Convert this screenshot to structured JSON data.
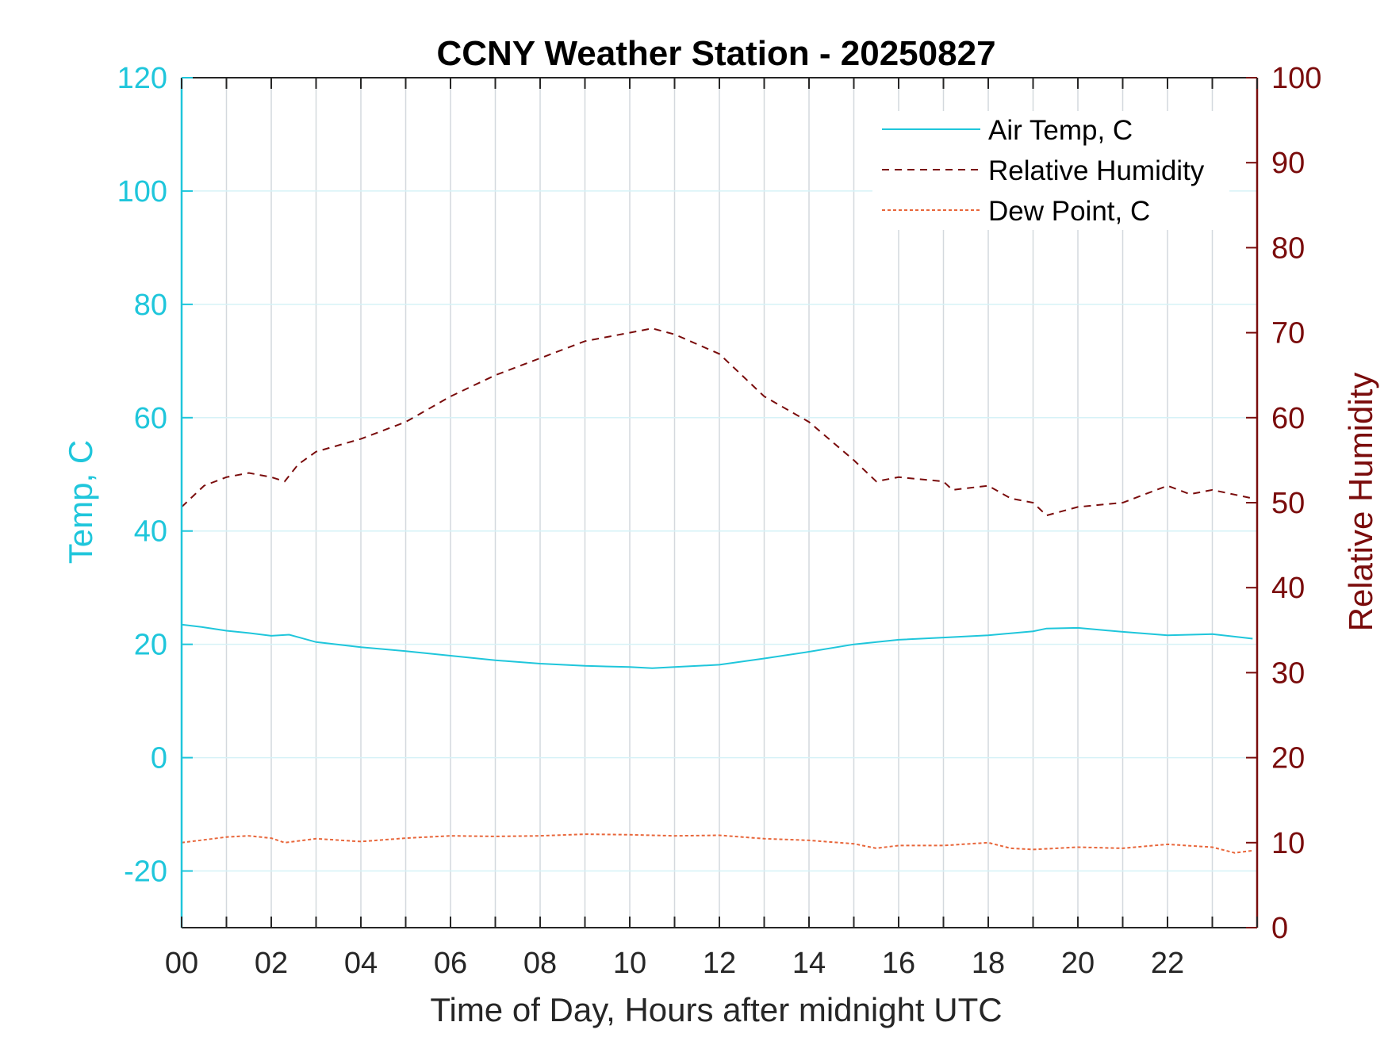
{
  "colors": {
    "temp": "#1fc6db",
    "humidity": "#7a0c0c",
    "dew": "#e8663a",
    "grid_x": "#d4d9de",
    "grid_y": "#d6f2f7",
    "axis_x": "#262626"
  },
  "chart_data": {
    "type": "line",
    "title": "CCNY Weather Station - 20250827",
    "xlabel": "Time of Day, Hours after midnight UTC",
    "ylabel_left": "Temp, C",
    "ylabel_right": "Relative Humidity",
    "xlim": [
      0,
      24
    ],
    "ylim_left": [
      -30,
      120
    ],
    "ylim_right": [
      0,
      100
    ],
    "x_ticks": [
      0,
      2,
      4,
      6,
      8,
      10,
      12,
      14,
      16,
      18,
      20,
      22
    ],
    "x_tick_labels": [
      "00",
      "02",
      "04",
      "06",
      "08",
      "10",
      "12",
      "14",
      "16",
      "18",
      "20",
      "22"
    ],
    "y_left_ticks": [
      120,
      100,
      80,
      60,
      40,
      20,
      0,
      -20
    ],
    "y_left_tick_labels": [
      "120",
      "100",
      "80",
      "60",
      "40",
      "20",
      "0",
      "-20"
    ],
    "y_right_ticks": [
      100,
      90,
      80,
      70,
      60,
      50,
      40,
      30,
      20,
      10,
      0
    ],
    "y_right_tick_labels": [
      "100",
      "90",
      "80",
      "70",
      "60",
      "50",
      "40",
      "30",
      "20",
      "10",
      "0"
    ],
    "grid": true,
    "legend_position": "top-right",
    "series": [
      {
        "name": "Air Temp, C",
        "axis": "left",
        "style": "solid",
        "x": [
          0,
          0.5,
          1,
          1.5,
          2,
          2.4,
          3,
          4,
          5,
          6,
          7,
          8,
          9,
          10,
          10.5,
          11,
          12,
          13,
          14,
          15,
          16,
          17,
          18,
          19,
          19.3,
          20,
          21,
          22,
          23,
          23.9
        ],
        "y": [
          23.5,
          23,
          22.4,
          22,
          21.5,
          21.7,
          20.4,
          19.5,
          18.8,
          18,
          17.2,
          16.6,
          16.2,
          16,
          15.8,
          16,
          16.4,
          17.5,
          18.7,
          20,
          20.8,
          21.2,
          21.6,
          22.3,
          22.8,
          22.9,
          22.2,
          21.6,
          21.8,
          21
        ]
      },
      {
        "name": "Relative Humidity",
        "axis": "right",
        "style": "dashed",
        "x": [
          0,
          0.5,
          1,
          1.5,
          2,
          2.3,
          2.6,
          3,
          4,
          5,
          6,
          7,
          8,
          9,
          10,
          10.5,
          11,
          12,
          12.5,
          13,
          14,
          15,
          15.5,
          16,
          17,
          17.2,
          18,
          18.5,
          19,
          19.3,
          20,
          21,
          22,
          22.5,
          23,
          23.9
        ],
        "y": [
          49.5,
          52,
          53,
          53.5,
          53,
          52.5,
          54.5,
          56,
          57.5,
          59.5,
          62.5,
          65,
          67,
          69,
          70,
          70.5,
          69.8,
          67.5,
          65,
          62.5,
          59.5,
          55,
          52.5,
          53,
          52.5,
          51.5,
          52,
          50.5,
          50,
          48.5,
          49.5,
          50,
          52,
          51,
          51.5,
          50.5
        ]
      },
      {
        "name": "Dew Point, C",
        "axis": "left",
        "style": "dashed",
        "x": [
          0,
          1,
          1.5,
          2,
          2.3,
          3,
          4,
          5,
          6,
          7,
          8,
          9,
          10,
          11,
          12,
          13,
          14,
          15,
          15.5,
          16,
          17,
          18,
          18.5,
          19,
          20,
          21,
          22,
          23,
          23.5,
          23.9
        ],
        "y": [
          -15,
          -14,
          -13.8,
          -14.2,
          -15,
          -14.3,
          -14.8,
          -14.2,
          -13.8,
          -13.9,
          -13.8,
          -13.5,
          -13.6,
          -13.8,
          -13.7,
          -14.3,
          -14.6,
          -15.2,
          -16,
          -15.5,
          -15.5,
          -15,
          -16,
          -16.2,
          -15.8,
          -16,
          -15.3,
          -15.8,
          -16.8,
          -16.4
        ]
      }
    ]
  }
}
